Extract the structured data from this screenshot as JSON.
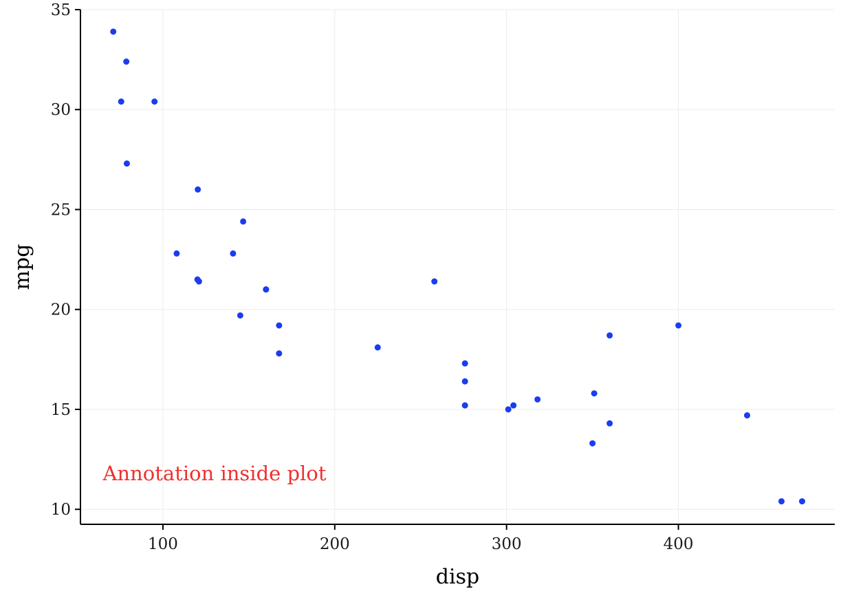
{
  "colors": {
    "point": "#1a3cf2",
    "annotation": "#f0302e",
    "grid": "#ebebeb",
    "axis": "#000000"
  },
  "chart_data": {
    "type": "scatter",
    "xlabel": "disp",
    "ylabel": "mpg",
    "xlim": [
      52,
      491
    ],
    "ylim": [
      9.25,
      35
    ],
    "x_ticks": [
      100,
      200,
      300,
      400
    ],
    "y_ticks": [
      10,
      15,
      20,
      25,
      30,
      35
    ],
    "grid": true,
    "legend": "none",
    "annotation": {
      "text": "Annotation inside plot",
      "x": 65,
      "y": 11.8
    },
    "x": [
      160,
      160,
      108,
      258,
      360,
      225,
      360,
      146.7,
      140.8,
      167.6,
      167.6,
      275.8,
      275.8,
      275.8,
      472,
      460,
      440,
      78.7,
      75.7,
      71.1,
      120.1,
      318,
      304,
      350,
      400,
      79,
      120.3,
      95.1,
      351,
      145,
      301,
      121
    ],
    "y": [
      21,
      21,
      22.8,
      21.4,
      18.7,
      18.1,
      14.3,
      24.4,
      22.8,
      19.2,
      17.8,
      16.4,
      17.3,
      15.2,
      10.4,
      10.4,
      14.7,
      32.4,
      30.4,
      33.9,
      21.5,
      15.5,
      15.2,
      13.3,
      19.2,
      27.3,
      26,
      30.4,
      15.8,
      19.7,
      15,
      21.4
    ]
  }
}
